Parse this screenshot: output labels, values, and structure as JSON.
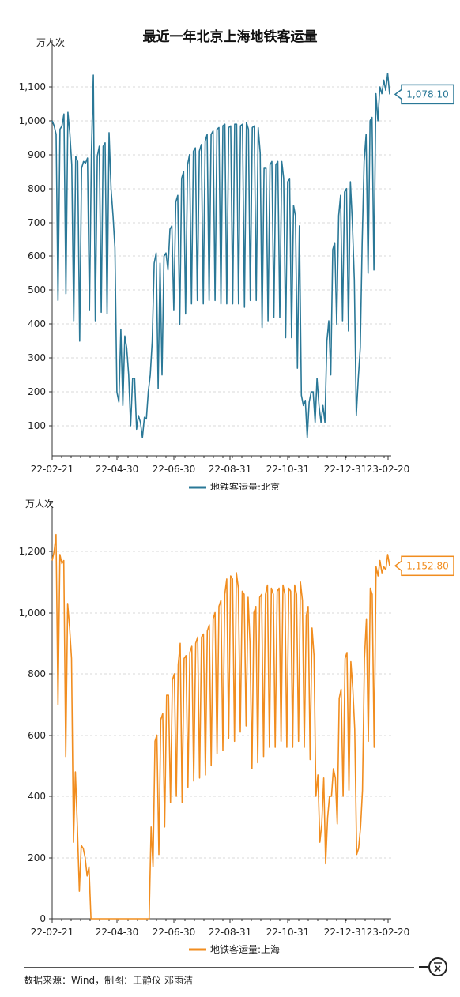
{
  "title": "最近一年北京上海地铁客运量",
  "footer": "数据来源：Wind，制图：王静仪 邓雨洁",
  "brand_logo": "一客",
  "colors": {
    "beijing": "#2a7897",
    "shanghai": "#f18d1f",
    "grid": "#d9d9d9",
    "axis": "#333333"
  },
  "chart_data": [
    {
      "type": "line",
      "id": "beijing",
      "unit_label": "万人次",
      "series": [
        {
          "name": "地铁客运量:北京",
          "values": [
            1000,
            985,
            960,
            470,
            975,
            985,
            1020,
            490,
            1025,
            965,
            870,
            410,
            895,
            880,
            350,
            860,
            880,
            875,
            890,
            440,
            910,
            1135,
            410,
            895,
            925,
            435,
            925,
            935,
            430,
            965,
            800,
            720,
            625,
            200,
            170,
            385,
            160,
            365,
            330,
            250,
            100,
            240,
            240,
            90,
            130,
            110,
            65,
            125,
            120,
            200,
            250,
            350,
            580,
            610,
            210,
            580,
            250,
            600,
            610,
            560,
            680,
            690,
            440,
            760,
            780,
            400,
            830,
            850,
            430,
            870,
            900,
            460,
            910,
            920,
            470,
            910,
            930,
            460,
            940,
            960,
            470,
            960,
            970,
            470,
            975,
            980,
            460,
            985,
            990,
            460,
            980,
            985,
            460,
            990,
            990,
            460,
            985,
            990,
            450,
            995,
            975,
            470,
            980,
            985,
            470,
            980,
            905,
            390,
            860,
            860,
            410,
            870,
            880,
            420,
            870,
            880,
            420,
            880,
            830,
            360,
            820,
            830,
            360,
            750,
            720,
            270,
            690,
            190,
            160,
            175,
            65,
            170,
            200,
            200,
            110,
            240,
            160,
            110,
            160,
            110,
            350,
            410,
            250,
            620,
            640,
            400,
            720,
            780,
            410,
            790,
            800,
            380,
            820,
            700,
            530,
            130,
            240,
            330,
            640,
            880,
            960,
            550,
            1000,
            1010,
            560,
            1080,
            1000,
            1100,
            1080,
            1120,
            1090,
            1140,
            1078.1
          ]
        }
      ],
      "x_ticks": [
        "22-02-21",
        "22-04-30",
        "22-06-30",
        "22-08-31",
        "22-10-31",
        "22-12-31",
        "23-02-20"
      ],
      "y_ticks": [
        "100",
        "200",
        "300",
        "400",
        "500",
        "600",
        "700",
        "800",
        "900",
        "1,000",
        "1,100"
      ],
      "ylim": [
        0,
        1200
      ],
      "last_value_label": "1,078.10",
      "grid": true,
      "legend": "bottom-center"
    },
    {
      "type": "line",
      "id": "shanghai",
      "unit_label": "万人次",
      "series": [
        {
          "name": "地铁客运量:上海",
          "values": [
            1170,
            1200,
            1255,
            700,
            1190,
            1160,
            1170,
            530,
            1030,
            950,
            850,
            250,
            480,
            300,
            90,
            240,
            230,
            200,
            140,
            170,
            0,
            0,
            0,
            0,
            0,
            0,
            0,
            0,
            0,
            0,
            0,
            0,
            0,
            0,
            0,
            0,
            0,
            0,
            0,
            0,
            0,
            0,
            0,
            0,
            0,
            0,
            0,
            0,
            0,
            0,
            0,
            300,
            170,
            580,
            600,
            210,
            650,
            670,
            300,
            730,
            730,
            380,
            780,
            800,
            400,
            830,
            900,
            380,
            850,
            860,
            430,
            870,
            890,
            450,
            900,
            920,
            460,
            920,
            930,
            470,
            940,
            960,
            500,
            980,
            1000,
            540,
            1020,
            1040,
            550,
            1060,
            1110,
            590,
            1120,
            1110,
            580,
            1130,
            1080,
            610,
            1070,
            1060,
            630,
            1050,
            900,
            490,
            1000,
            1020,
            510,
            1050,
            1060,
            530,
            1060,
            1090,
            560,
            1080,
            1060,
            560,
            1070,
            1080,
            580,
            1090,
            1060,
            560,
            1080,
            1070,
            560,
            1090,
            1060,
            580,
            1100,
            1040,
            560,
            990,
            1020,
            520,
            950,
            860,
            400,
            470,
            250,
            310,
            460,
            180,
            330,
            400,
            400,
            490,
            460,
            310,
            720,
            750,
            400,
            850,
            870,
            420,
            840,
            750,
            620,
            210,
            230,
            300,
            420,
            850,
            980,
            580,
            1080,
            1060,
            560,
            1150,
            1120,
            1170,
            1130,
            1150,
            1140,
            1190,
            1152.8
          ]
        }
      ],
      "x_ticks": [
        "22-02-21",
        "22-04-30",
        "22-06-30",
        "22-08-31",
        "22-10-31",
        "22-12-31",
        "23-02-20"
      ],
      "y_ticks": [
        "0",
        "200",
        "400",
        "600",
        "800",
        "1,000",
        "1,200"
      ],
      "ylim": [
        0,
        1320
      ],
      "last_value_label": "1,152.80",
      "grid": true,
      "legend": "bottom-center"
    }
  ]
}
